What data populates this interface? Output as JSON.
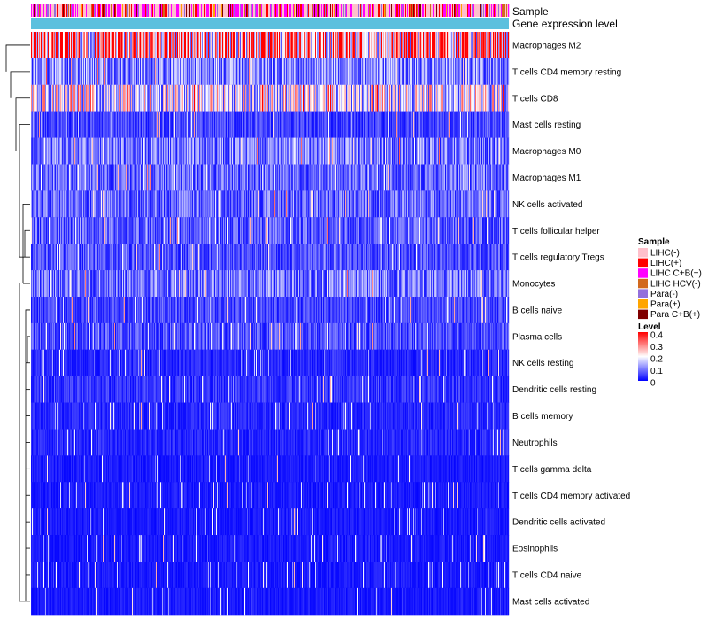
{
  "chart_data": {
    "type": "heatmap",
    "annotation_tracks": [
      "Sample",
      "Gene expression level"
    ],
    "rows": [
      "Macrophages M2",
      "T cells CD4 memory resting",
      "T cells CD8",
      "Mast cells resting",
      "Macrophages M0",
      "Macrophages M1",
      "NK cells activated",
      "T cells follicular helper",
      "T cells regulatory  Tregs",
      "Monocytes",
      "B cells naive",
      "Plasma cells",
      "NK cells resting",
      "Dendritic cells resting",
      "B cells memory",
      "Neutrophils",
      "T cells gamma delta",
      "T cells CD4 memory activated",
      "Dendritic cells activated",
      "Eosinophils",
      "T cells CD4 naive",
      "Mast cells activated"
    ],
    "row_mean_level": [
      0.28,
      0.1,
      0.18,
      0.05,
      0.09,
      0.08,
      0.08,
      0.07,
      0.06,
      0.09,
      0.05,
      0.06,
      0.03,
      0.04,
      0.03,
      0.03,
      0.02,
      0.02,
      0.02,
      0.02,
      0.02,
      0.02
    ],
    "n_samples": 540,
    "sample_legend": {
      "title": "Sample",
      "entries": [
        {
          "label": "LIHC(-)",
          "color": "#ffc0cb"
        },
        {
          "label": "LIHC(+)",
          "color": "#ff0000"
        },
        {
          "label": "LIHC C+B(+)",
          "color": "#ff00ff"
        },
        {
          "label": "LIHC HCV(-)",
          "color": "#d2691e"
        },
        {
          "label": "Para(-)",
          "color": "#9370db"
        },
        {
          "label": "Para(+)",
          "color": "#ffa500"
        },
        {
          "label": "Para C+B(+)",
          "color": "#800000"
        }
      ]
    },
    "level_legend": {
      "title": "Level",
      "ticks": [
        "0.4",
        "0.3",
        "0.2",
        "0.1",
        "0"
      ],
      "range": [
        0,
        0.4
      ],
      "colors": [
        "#0000ff",
        "#ffffff",
        "#ff0000"
      ]
    },
    "gene_expression_color": "#5bc0de",
    "dendrogram": "left"
  }
}
